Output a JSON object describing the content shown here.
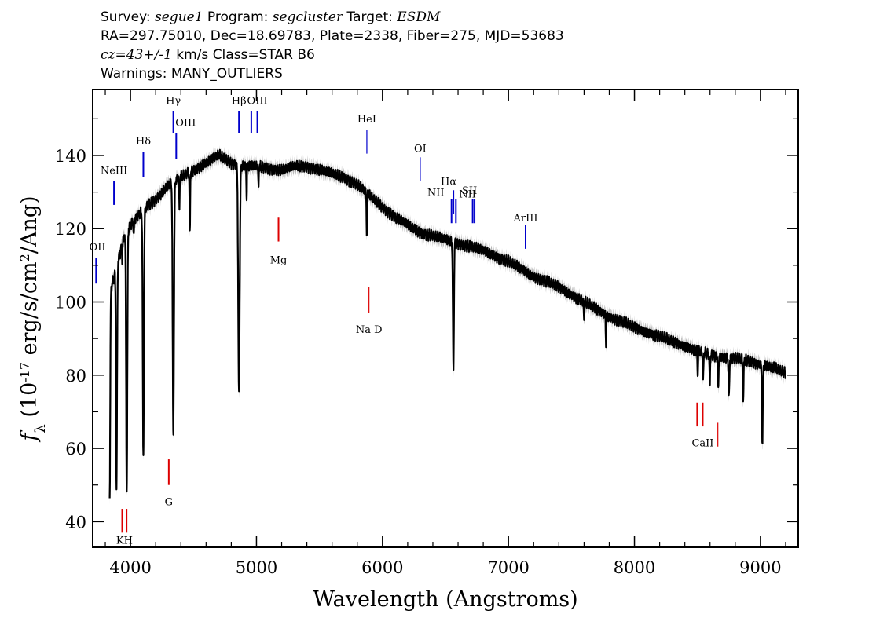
{
  "header": {
    "line1": {
      "survey_label": "Survey: ",
      "survey": "segue1",
      "program_label": " Program: ",
      "program": "segcluster",
      "target_label": " Target: ",
      "target": "ESDM"
    },
    "line2": "RA=297.75010, Dec=18.69783, Plate=2338, Fiber=275, MJD=53683",
    "line3": {
      "cz": "cz=43+/-1",
      "rest": " km/s Class=STAR B6"
    },
    "line4": "Warnings: MANY_OUTLIERS"
  },
  "chart_data": {
    "type": "line",
    "xlabel": "Wavelength (Angstroms)",
    "ylabel": "f_λ (10^-17 erg/s/cm^2/Ang)",
    "xlim": [
      3700,
      9300
    ],
    "ylim": [
      33,
      158
    ],
    "xticks": [
      4000,
      5000,
      6000,
      7000,
      8000,
      9000
    ],
    "yticks": [
      40,
      60,
      80,
      100,
      120,
      140
    ],
    "colors": {
      "spectrum": "#000000",
      "error_band": "#b8b8b8",
      "emission": "#0000cc",
      "absorption": "#dd0000"
    },
    "continuum": [
      [
        3840,
        103
      ],
      [
        3900,
        111
      ],
      [
        3950,
        118
      ],
      [
        4000,
        121
      ],
      [
        4100,
        125
      ],
      [
        4200,
        128
      ],
      [
        4300,
        132
      ],
      [
        4400,
        134
      ],
      [
        4500,
        136
      ],
      [
        4600,
        138
      ],
      [
        4700,
        140
      ],
      [
        4800,
        138
      ],
      [
        4900,
        137
      ],
      [
        5000,
        137
      ],
      [
        5100,
        136.5
      ],
      [
        5200,
        136
      ],
      [
        5300,
        137
      ],
      [
        5400,
        137
      ],
      [
        5500,
        136
      ],
      [
        5600,
        135
      ],
      [
        5700,
        134
      ],
      [
        5800,
        132
      ],
      [
        5900,
        129
      ],
      [
        6000,
        126
      ],
      [
        6100,
        123
      ],
      [
        6200,
        121
      ],
      [
        6300,
        119
      ],
      [
        6400,
        118
      ],
      [
        6500,
        117
      ],
      [
        6600,
        116
      ],
      [
        6700,
        115
      ],
      [
        6800,
        114
      ],
      [
        7000,
        111
      ],
      [
        7200,
        107
      ],
      [
        7400,
        104
      ],
      [
        7600,
        100
      ],
      [
        7800,
        96
      ],
      [
        8000,
        93
      ],
      [
        8200,
        90.5
      ],
      [
        8400,
        88
      ],
      [
        8500,
        86.5
      ],
      [
        8600,
        85.5
      ],
      [
        8700,
        85
      ],
      [
        8800,
        84.5
      ],
      [
        8900,
        84
      ],
      [
        9000,
        83
      ],
      [
        9100,
        82
      ],
      [
        9200,
        80.5
      ]
    ],
    "absorption_features": [
      {
        "wl": 3835,
        "min": 47,
        "fwhm": 9
      },
      {
        "wl": 3889,
        "min": 49,
        "fwhm": 10
      },
      {
        "wl": 3934,
        "min": 112,
        "fwhm": 5
      },
      {
        "wl": 3970,
        "min": 48,
        "fwhm": 11
      },
      {
        "wl": 4026,
        "min": 118,
        "fwhm": 5
      },
      {
        "wl": 4102,
        "min": 58,
        "fwhm": 11
      },
      {
        "wl": 4340,
        "min": 64,
        "fwhm": 12
      },
      {
        "wl": 4388,
        "min": 125,
        "fwhm": 5
      },
      {
        "wl": 4471,
        "min": 118,
        "fwhm": 6
      },
      {
        "wl": 4861,
        "min": 75,
        "fwhm": 14
      },
      {
        "wl": 4922,
        "min": 128,
        "fwhm": 5
      },
      {
        "wl": 5016,
        "min": 131,
        "fwhm": 5
      },
      {
        "wl": 5876,
        "min": 118,
        "fwhm": 6
      },
      {
        "wl": 6563,
        "min": 82,
        "fwhm": 10
      },
      {
        "wl": 7600,
        "min": 95,
        "fwhm": 6
      },
      {
        "wl": 7774,
        "min": 88,
        "fwhm": 5
      },
      {
        "wl": 8502,
        "min": 80,
        "fwhm": 6
      },
      {
        "wl": 8545,
        "min": 78,
        "fwhm": 6
      },
      {
        "wl": 8598,
        "min": 77,
        "fwhm": 6
      },
      {
        "wl": 8665,
        "min": 76,
        "fwhm": 7
      },
      {
        "wl": 8750,
        "min": 74,
        "fwhm": 8
      },
      {
        "wl": 8863,
        "min": 73,
        "fwhm": 8
      },
      {
        "wl": 9015,
        "min": 62,
        "fwhm": 9
      }
    ],
    "emission_lines": [
      {
        "label": "OII",
        "wl": 3727,
        "y1": 105,
        "y2": 112,
        "label_y": 114
      },
      {
        "label": "NeIII",
        "wl": 3869,
        "y1": 126.5,
        "y2": 133,
        "label_y": 135
      },
      {
        "label": "Hδ",
        "wl": 4102,
        "y1": 134,
        "y2": 141,
        "label_y": 143
      },
      {
        "label": "Hγ",
        "wl": 4340,
        "y1": 146,
        "y2": 152,
        "label_y": 154
      },
      {
        "label": "OIII",
        "wl": 4363,
        "y1": 139,
        "y2": 146,
        "label_y": 148
      },
      {
        "label": "Hβ",
        "wl": 4861,
        "y1": 146,
        "y2": 152,
        "label_y": 154
      },
      {
        "label": "OIII",
        "wl": 4959,
        "y1": 146,
        "y2": 152,
        "label_y": null
      },
      {
        "label": "OIII",
        "wl": 5007,
        "y1": 146,
        "y2": 152,
        "label_y": 154
      },
      {
        "label": "HeI",
        "wl": 5876,
        "y1": 140.5,
        "y2": 147,
        "label_y": 149
      },
      {
        "label": "OI",
        "wl": 6300,
        "y1": 133,
        "y2": 139.5,
        "label_y": 141
      },
      {
        "label": "NII",
        "wl": 6548,
        "y1": 121.5,
        "y2": 128,
        "label_y": 129
      },
      {
        "label": "Hα",
        "wl": 6563,
        "y1": 124,
        "y2": 130.5,
        "label_y": 132
      },
      {
        "label": "NII",
        "wl": 6583,
        "y1": 121.5,
        "y2": 128,
        "label_y": null
      },
      {
        "label": "SII",
        "wl": 6716,
        "y1": 121.5,
        "y2": 128,
        "label_y": 129.5
      },
      {
        "label": "SII",
        "wl": 6731,
        "y1": 121.5,
        "y2": 128,
        "label_y": null
      },
      {
        "label": "NII",
        "wl": 6700,
        "y1": null,
        "y2": null,
        "label_y": 128.5
      },
      {
        "label": "ArIII",
        "wl": 7136,
        "y1": 114.5,
        "y2": 121,
        "label_y": 122
      }
    ],
    "absorption_lines": [
      {
        "label": "K",
        "wl": 3934,
        "y1": 37,
        "y2": 43.5
      },
      {
        "label": "H",
        "wl": 3969,
        "y1": 37,
        "y2": 43.5
      },
      {
        "label": "KH",
        "wl": 3952,
        "y1": null,
        "y2": null,
        "label_y": 34
      },
      {
        "label": "G",
        "wl": 4304,
        "y1": 50,
        "y2": 57
      },
      {
        "label": "G",
        "wl": 4304,
        "y1": null,
        "y2": null,
        "label_y": 44.5
      },
      {
        "label": "Mg",
        "wl": 5175,
        "y1": 116.5,
        "y2": 123,
        "label_y": 110.5
      },
      {
        "label": "Na  D",
        "wl": 5893,
        "y1": 97,
        "y2": 104,
        "label_y": 91.5
      },
      {
        "label": "CaII",
        "wl": 8498,
        "y1": 66,
        "y2": 72.5
      },
      {
        "label": "CaII",
        "wl": 8542,
        "y1": 66,
        "y2": 72.5,
        "label_y": 60.5
      },
      {
        "label": "CaII",
        "wl": 8662,
        "y1": 60.5,
        "y2": 67
      }
    ]
  }
}
